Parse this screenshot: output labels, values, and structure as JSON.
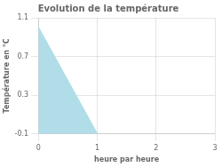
{
  "chart_data": {
    "type": "area",
    "title": "Evolution de la température",
    "xlabel": "heure par heure",
    "ylabel": "Température en °C",
    "x": [
      0,
      1
    ],
    "values": [
      1.0,
      -0.1
    ],
    "color": "#b0dde8",
    "xlim": [
      0,
      3
    ],
    "ylim": [
      -0.1,
      1.1
    ],
    "xticks": [
      0,
      1,
      2,
      3
    ],
    "yticks": [
      -0.1,
      0.3,
      0.7,
      1.1
    ],
    "grid": true
  }
}
